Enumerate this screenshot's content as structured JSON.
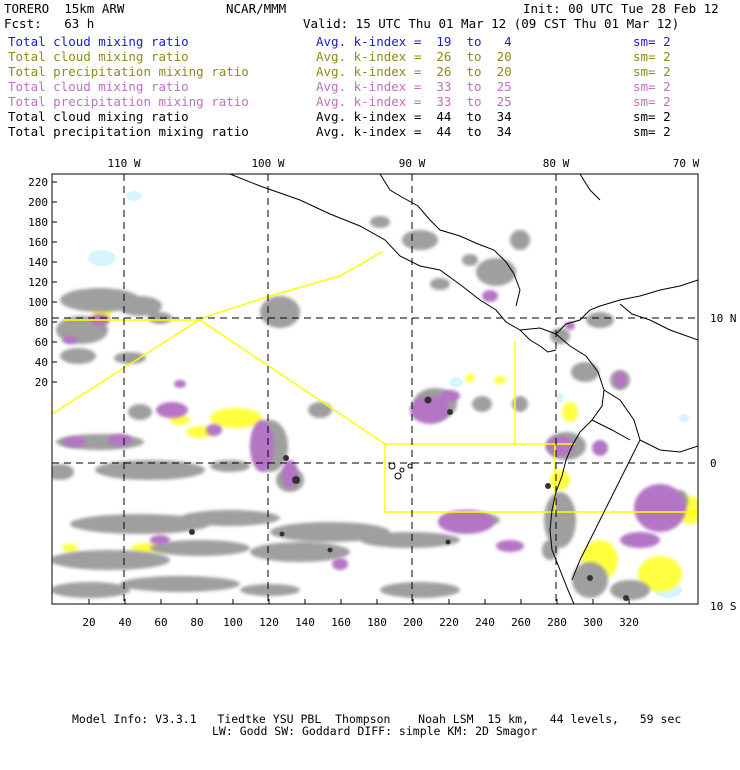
{
  "header": {
    "model": "TORERO  15km ARW",
    "org": "NCAR/MMM",
    "init": "Init: 00 UTC Tue 28 Feb 12",
    "fcst": "Fcst:   63 h",
    "valid": "Valid: 15 UTC Thu 01 Mar 12 (09 CST Thu 01 Mar 12)"
  },
  "legend": [
    {
      "field": "Total cloud mixing ratio",
      "k_index": "Avg. k-index =  19  to   4",
      "sm": "sm= 2",
      "color": "#1a1ad0"
    },
    {
      "field": "Total cloud mixing ratio",
      "k_index": "Avg. k-index =  26  to  20",
      "sm": "sm= 2",
      "color": "#8c8c1a"
    },
    {
      "field": "Total precipitation mixing ratio",
      "k_index": "Avg. k-index =  26  to  20",
      "sm": "sm= 2",
      "color": "#8c8c1a"
    },
    {
      "field": "Total cloud mixing ratio",
      "k_index": "Avg. k-index =  33  to  25",
      "sm": "sm= 2",
      "color": "#c070c0"
    },
    {
      "field": "Total precipitation mixing ratio",
      "k_index": "Avg. k-index =  33  to  25",
      "sm": "sm= 2",
      "color": "#c070c0"
    },
    {
      "field": "Total cloud mixing ratio",
      "k_index": "Avg. k-index =  44  to  34",
      "sm": "sm= 2",
      "color": "#000000"
    },
    {
      "field": "Total precipitation mixing ratio",
      "k_index": "Avg. k-index =  44  to  34",
      "sm": "sm= 2",
      "color": "#000000"
    }
  ],
  "map": {
    "lon_labels": [
      "110 W",
      "100 W",
      "90 W",
      "80 W",
      "70 W"
    ],
    "lat_labels": [
      "10 N",
      "0",
      "10 S"
    ],
    "y_ticks": [
      "220",
      "200",
      "180",
      "160",
      "140",
      "120",
      "100",
      "80",
      "60",
      "40",
      "20"
    ],
    "x_ticks": [
      "20",
      "40",
      "60",
      "80",
      "100",
      "120",
      "140",
      "160",
      "180",
      "200",
      "220",
      "240",
      "260",
      "280",
      "300",
      "320"
    ],
    "colors": {
      "cloud_gray": "#9a9a9a",
      "precip_purple": "#b070c0",
      "yellow": "#ffff40",
      "cyan": "#d8f4ff",
      "border": "#ffff00"
    }
  },
  "footer": {
    "line1": "Model Info: V3.3.1   Tiedtke YSU PBL  Thompson    Noah LSM  15 km,   44 levels,   59 sec",
    "line2": "LW: Godd SW: Goddard DIFF: simple KM: 2D Smagor"
  }
}
